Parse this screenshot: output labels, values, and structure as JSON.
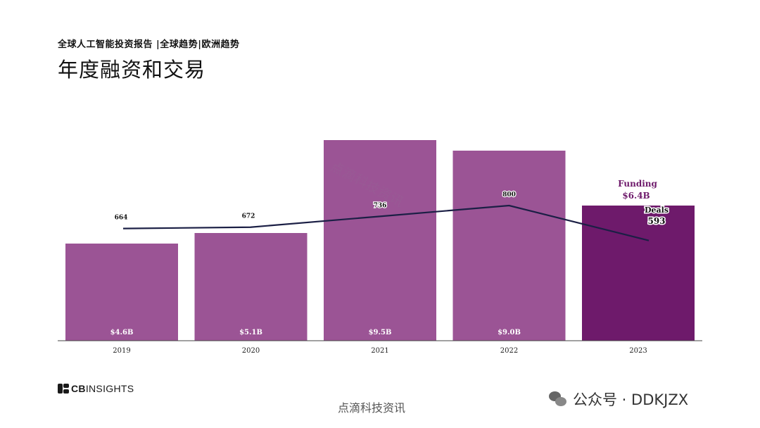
{
  "header": {
    "subtitle": "全球人工智能投资报告 |全球趋势|欧洲趋势",
    "title": "年度融资和交易"
  },
  "colors": {
    "bar": "#9B5495",
    "bar_highlight": "#6E1A6B",
    "line": "#1B1F45",
    "axis": "#444444"
  },
  "chart_data": {
    "type": "bar",
    "categories": [
      "2019",
      "2020",
      "2021",
      "2022",
      "2023"
    ],
    "series": [
      {
        "name": "Funding",
        "type": "bar",
        "values": [
          4.6,
          5.1,
          9.5,
          9.0,
          6.4
        ],
        "labels": [
          "$4.6B",
          "$5.1B",
          "$9.5B",
          "$9.0B",
          "$6.4B"
        ]
      },
      {
        "name": "Deals",
        "type": "line",
        "values": [
          664,
          672,
          736,
          800,
          593
        ]
      }
    ],
    "annotations": {
      "funding_label": "Funding",
      "funding_value": "$6.4B",
      "deals_label": "Deals",
      "deals_value": "593"
    },
    "ylim_funding": [
      0,
      10
    ],
    "ylim_deals": [
      0,
      1050
    ],
    "grid": false,
    "legend": "none"
  },
  "watermarks": {
    "diagonal": "点滴科技资讯",
    "footer": "点滴科技资讯",
    "wechat": "公众号 · DDKJZX"
  },
  "brand": {
    "logo_prefix": "CB",
    "logo_suffix": "INSIGHTS",
    "logo_icon": "cb-logo-icon",
    "wechat_icon": "wechat-icon"
  }
}
